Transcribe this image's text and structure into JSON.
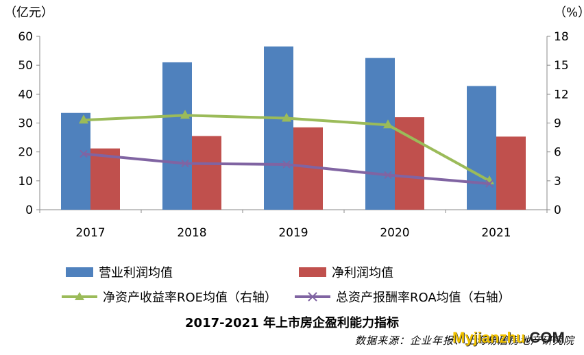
{
  "chart_data": {
    "type": "bar",
    "title": "2017-2021 年上市房企盈利能力指标",
    "categories": [
      "2017",
      "2018",
      "2019",
      "2020",
      "2021"
    ],
    "y_left": {
      "unit": "（亿元）",
      "ylim": [
        0,
        60
      ],
      "ticks": [
        0,
        10,
        20,
        30,
        40,
        50,
        60
      ]
    },
    "y_right": {
      "unit": "（%）",
      "ylim": [
        0,
        18
      ],
      "ticks": [
        0,
        3,
        6,
        9,
        12,
        15,
        18
      ]
    },
    "series": [
      {
        "name": "营业利润均值",
        "kind": "bar",
        "axis": "left",
        "color": "#4f81bd",
        "values": [
          33.5,
          51.0,
          56.5,
          52.5,
          42.8
        ]
      },
      {
        "name": "净利润均值",
        "kind": "bar",
        "axis": "left",
        "color": "#c0504d",
        "values": [
          21.2,
          25.5,
          28.5,
          32.0,
          25.3
        ]
      },
      {
        "name": "净资产收益率ROE均值（右轴）",
        "kind": "line",
        "axis": "right",
        "color": "#9bbb59",
        "marker": "triangle",
        "values": [
          9.3,
          9.8,
          9.5,
          8.8,
          3.0
        ]
      },
      {
        "name": "总资产报酬率ROA均值（右轴）",
        "kind": "line",
        "axis": "right",
        "color": "#8064a2",
        "marker": "x",
        "values": [
          5.8,
          4.8,
          4.7,
          3.6,
          2.7
        ]
      }
    ],
    "grid": false,
    "legend_position": "bottom"
  },
  "source_text": "数据来源：企业年报、上海易居房地产研究院",
  "watermark": {
    "text_a": "Myjianzhu",
    "text_b": ".COM"
  }
}
